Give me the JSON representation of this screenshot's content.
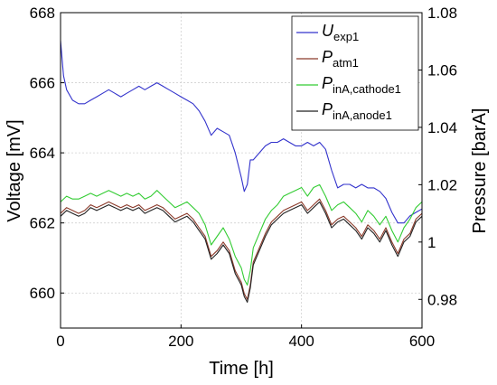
{
  "chart_data": {
    "type": "line",
    "xlabel": "Time [h]",
    "ylabel_left": "Voltage [mV]",
    "ylabel_right": "Pressure [barA]",
    "xlim": [
      0,
      600
    ],
    "ylim_left": [
      659,
      668
    ],
    "ylim_right": [
      0.97,
      1.08
    ],
    "x_ticks": [
      "0",
      "200",
      "400",
      "600"
    ],
    "y_left_ticks": [
      "660",
      "662",
      "664",
      "666",
      "668"
    ],
    "y_right_ticks": [
      "0.98",
      "1",
      "1.02",
      "1.04",
      "1.06",
      "1.08"
    ],
    "grid": true,
    "legend_position": "top-right",
    "series": [
      {
        "name": "U",
        "name_sub": "exp1",
        "axis": "left",
        "color": "#3333cc",
        "x": [
          0,
          5,
          10,
          20,
          30,
          40,
          50,
          60,
          70,
          80,
          90,
          100,
          110,
          120,
          130,
          140,
          150,
          160,
          170,
          180,
          190,
          200,
          210,
          220,
          230,
          240,
          250,
          260,
          270,
          280,
          290,
          300,
          305,
          310,
          315,
          320,
          330,
          340,
          350,
          360,
          370,
          380,
          390,
          400,
          410,
          420,
          430,
          440,
          450,
          460,
          470,
          480,
          490,
          500,
          510,
          520,
          530,
          540,
          550,
          560,
          570,
          580,
          590,
          600
        ],
        "y": [
          667.2,
          666.2,
          665.8,
          665.5,
          665.4,
          665.4,
          665.5,
          665.6,
          665.7,
          665.8,
          665.7,
          665.6,
          665.7,
          665.8,
          665.9,
          665.8,
          665.9,
          666.0,
          665.9,
          665.8,
          665.7,
          665.6,
          665.5,
          665.4,
          665.2,
          664.9,
          664.5,
          664.7,
          664.6,
          664.5,
          664.0,
          663.3,
          662.9,
          663.1,
          663.8,
          663.8,
          664.0,
          664.2,
          664.3,
          664.3,
          664.4,
          664.3,
          664.2,
          664.2,
          664.3,
          664.2,
          664.3,
          664.1,
          663.5,
          663.0,
          663.1,
          663.1,
          663.0,
          663.1,
          663.0,
          663.0,
          662.9,
          662.7,
          662.3,
          662.0,
          662.0,
          662.2,
          662.3,
          662.4
        ]
      },
      {
        "name": "P",
        "name_sub": "atm1",
        "axis": "right",
        "color": "#8b3a2a",
        "x": [
          0,
          10,
          20,
          30,
          40,
          50,
          60,
          70,
          80,
          90,
          100,
          110,
          120,
          130,
          140,
          150,
          160,
          170,
          180,
          190,
          200,
          210,
          220,
          230,
          240,
          250,
          260,
          270,
          280,
          290,
          300,
          305,
          310,
          315,
          320,
          330,
          340,
          350,
          360,
          370,
          380,
          390,
          400,
          410,
          420,
          430,
          440,
          450,
          460,
          470,
          480,
          490,
          500,
          510,
          520,
          530,
          540,
          550,
          560,
          570,
          580,
          590,
          600
        ],
        "y": [
          1.01,
          1.012,
          1.011,
          1.01,
          1.011,
          1.013,
          1.012,
          1.013,
          1.014,
          1.013,
          1.012,
          1.013,
          1.012,
          1.013,
          1.011,
          1.012,
          1.013,
          1.012,
          1.01,
          1.008,
          1.009,
          1.01,
          1.008,
          1.005,
          1.002,
          0.995,
          0.997,
          1.0,
          0.997,
          0.99,
          0.986,
          0.982,
          0.98,
          0.985,
          0.993,
          0.998,
          1.003,
          1.007,
          1.009,
          1.011,
          1.012,
          1.013,
          1.014,
          1.011,
          1.013,
          1.015,
          1.011,
          1.006,
          1.008,
          1.009,
          1.007,
          1.005,
          1.002,
          1.006,
          1.004,
          1.001,
          1.005,
          1.0,
          0.996,
          1.001,
          1.003,
          1.008,
          1.01
        ]
      },
      {
        "name": "P",
        "name_sub": "inA,cathode1",
        "axis": "right",
        "color": "#33cc33",
        "x": [
          0,
          10,
          20,
          30,
          40,
          50,
          60,
          70,
          80,
          90,
          100,
          110,
          120,
          130,
          140,
          150,
          160,
          170,
          180,
          190,
          200,
          210,
          220,
          230,
          240,
          250,
          260,
          270,
          280,
          290,
          300,
          305,
          310,
          315,
          320,
          330,
          340,
          350,
          360,
          370,
          380,
          390,
          400,
          410,
          420,
          430,
          440,
          450,
          460,
          470,
          480,
          490,
          500,
          510,
          520,
          530,
          540,
          550,
          560,
          570,
          580,
          590,
          600
        ],
        "y": [
          1.014,
          1.016,
          1.015,
          1.015,
          1.016,
          1.017,
          1.016,
          1.017,
          1.018,
          1.017,
          1.016,
          1.017,
          1.016,
          1.017,
          1.015,
          1.016,
          1.018,
          1.016,
          1.014,
          1.012,
          1.013,
          1.014,
          1.012,
          1.01,
          1.006,
          0.999,
          1.002,
          1.005,
          1.001,
          0.995,
          0.991,
          0.987,
          0.985,
          0.99,
          0.998,
          1.003,
          1.008,
          1.011,
          1.013,
          1.016,
          1.017,
          1.018,
          1.019,
          1.016,
          1.019,
          1.02,
          1.016,
          1.011,
          1.013,
          1.014,
          1.012,
          1.01,
          1.007,
          1.011,
          1.009,
          1.006,
          1.009,
          1.004,
          1.0,
          1.005,
          1.008,
          1.012,
          1.014
        ]
      },
      {
        "name": "P",
        "name_sub": "inA,anode1",
        "axis": "right",
        "color": "#222222",
        "x": [
          0,
          10,
          20,
          30,
          40,
          50,
          60,
          70,
          80,
          90,
          100,
          110,
          120,
          130,
          140,
          150,
          160,
          170,
          180,
          190,
          200,
          210,
          220,
          230,
          240,
          250,
          260,
          270,
          280,
          290,
          300,
          305,
          310,
          315,
          320,
          330,
          340,
          350,
          360,
          370,
          380,
          390,
          400,
          410,
          420,
          430,
          440,
          450,
          460,
          470,
          480,
          490,
          500,
          510,
          520,
          530,
          540,
          550,
          560,
          570,
          580,
          590,
          600
        ],
        "y": [
          1.009,
          1.011,
          1.01,
          1.009,
          1.01,
          1.012,
          1.011,
          1.012,
          1.013,
          1.012,
          1.011,
          1.012,
          1.011,
          1.012,
          1.01,
          1.011,
          1.012,
          1.011,
          1.009,
          1.007,
          1.008,
          1.009,
          1.007,
          1.004,
          1.001,
          0.994,
          0.996,
          0.999,
          0.996,
          0.989,
          0.985,
          0.981,
          0.979,
          0.984,
          0.992,
          0.997,
          1.002,
          1.006,
          1.008,
          1.01,
          1.011,
          1.012,
          1.013,
          1.01,
          1.012,
          1.014,
          1.01,
          1.005,
          1.007,
          1.008,
          1.006,
          1.004,
          1.001,
          1.005,
          1.003,
          1.0,
          1.004,
          0.999,
          0.995,
          1.0,
          1.002,
          1.007,
          1.009
        ]
      }
    ]
  }
}
